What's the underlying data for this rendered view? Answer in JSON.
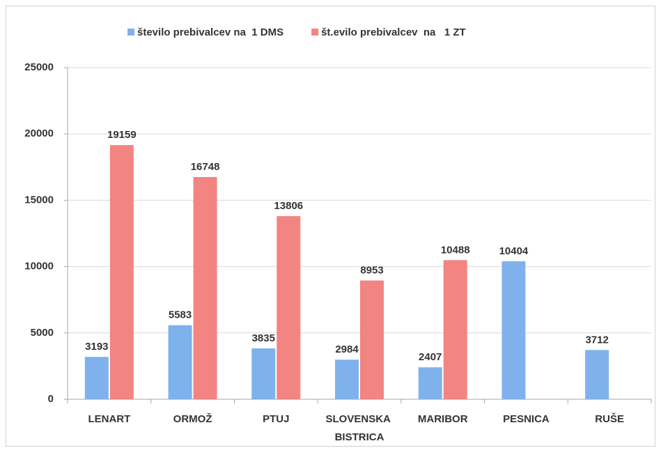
{
  "chart_data": {
    "type": "bar",
    "categories": [
      "LENART",
      "ORMOŽ",
      "PTUJ",
      "SLOVENSKA BISTRICA",
      "MARIBOR",
      "PESNICA",
      "RUŠE"
    ],
    "series": [
      {
        "name": "število prebivalcev na  1 DMS",
        "color": "#7fb2ec",
        "values": [
          3193,
          5583,
          3835,
          2984,
          2407,
          10404,
          3712
        ]
      },
      {
        "name": "št.evilo prebivalcev  na   1 ZT",
        "color": "#f28482",
        "values": [
          19159,
          16748,
          13806,
          8953,
          10488,
          null,
          null
        ]
      }
    ],
    "ylim": [
      0,
      25000
    ],
    "yticks": [
      0,
      5000,
      10000,
      15000,
      20000,
      25000
    ],
    "grid": true,
    "legend": "top"
  }
}
